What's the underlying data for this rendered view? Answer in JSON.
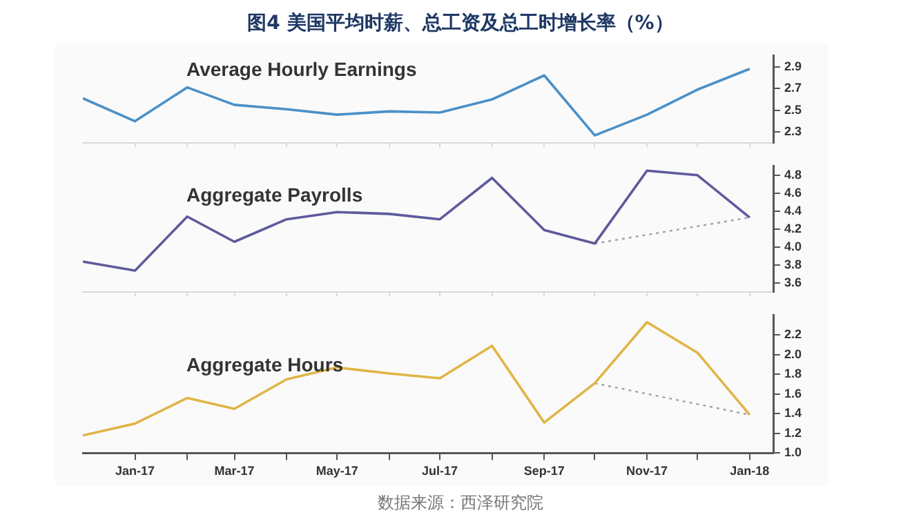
{
  "chart_data": [
    {
      "type": "line",
      "title": "图4 美国平均时薪、总工资及总工时增长率（%）",
      "x": [
        "2016-12",
        "2017-01",
        "2017-02",
        "2017-03",
        "2017-04",
        "2017-05",
        "2017-06",
        "2017-07",
        "2017-08",
        "2017-09",
        "2017-10",
        "2017-11",
        "2017-12",
        "2018-01"
      ],
      "series": [
        {
          "name": "Average Hourly Earnings",
          "color": "#4a90c8",
          "values": [
            2.61,
            2.4,
            2.71,
            2.55,
            2.51,
            2.46,
            2.49,
            2.48,
            2.6,
            2.82,
            2.27,
            2.46,
            2.69,
            2.88
          ]
        }
      ],
      "xlim": [
        "2016-12",
        "2018-01-15"
      ],
      "xticks": [
        {
          "value": "2017-01",
          "label": null
        },
        {
          "value": "2017-02",
          "label": null
        },
        {
          "value": "2017-03",
          "label": null
        },
        {
          "value": "2017-04",
          "label": null
        },
        {
          "value": "2017-05",
          "label": null
        },
        {
          "value": "2017-06",
          "label": null
        },
        {
          "value": "2017-07",
          "label": null
        },
        {
          "value": "2017-08",
          "label": null
        },
        {
          "value": "2017-09",
          "label": null
        },
        {
          "value": "2017-10",
          "label": null
        },
        {
          "value": "2017-11",
          "label": null
        },
        {
          "value": "2017-12",
          "label": null
        },
        {
          "value": "2018-01",
          "label": null
        }
      ],
      "ylim": [
        2.2,
        3.0
      ],
      "yticks": [
        2.3,
        2.5,
        2.7,
        2.9
      ],
      "tick_labels": "y",
      "marker": "none"
    },
    {
      "type": "line",
      "x": [
        "2016-12",
        "2017-01",
        "2017-02",
        "2017-03",
        "2017-04",
        "2017-05",
        "2017-06",
        "2017-07",
        "2017-08",
        "2017-09",
        "2017-10",
        "2017-11",
        "2017-12",
        "2018-01"
      ],
      "series": [
        {
          "name": "Aggregate Payrolls",
          "color": "#5e5a9c",
          "values": [
            3.84,
            3.74,
            4.34,
            4.06,
            4.31,
            4.39,
            4.37,
            4.31,
            4.77,
            4.19,
            4.04,
            4.85,
            4.8,
            4.33
          ]
        },
        {
          "x": [
            "2017-10",
            "2018-01"
          ],
          "color": "#a0a0a0",
          "line_style": "dotted",
          "values": [
            4.04,
            4.33
          ]
        }
      ],
      "xlim": [
        "2016-12",
        "2018-01-15"
      ],
      "xticks": [
        {
          "value": "2017-01",
          "label": null
        },
        {
          "value": "2017-02",
          "label": null
        },
        {
          "value": "2017-03",
          "label": null
        },
        {
          "value": "2017-04",
          "label": null
        },
        {
          "value": "2017-05",
          "label": null
        },
        {
          "value": "2017-06",
          "label": null
        },
        {
          "value": "2017-07",
          "label": null
        },
        {
          "value": "2017-08",
          "label": null
        },
        {
          "value": "2017-09",
          "label": null
        },
        {
          "value": "2017-10",
          "label": null
        },
        {
          "value": "2017-11",
          "label": null
        },
        {
          "value": "2017-12",
          "label": null
        },
        {
          "value": "2018-01",
          "label": null
        }
      ],
      "ylim": [
        3.5,
        4.9
      ],
      "yticks": [
        3.6,
        3.8,
        {
          "value": 4,
          "label": "4.0"
        },
        4.2,
        4.4,
        4.6,
        4.8
      ],
      "tick_labels": "y",
      "marker": "none"
    },
    {
      "type": "line",
      "x": [
        "2016-12",
        "2017-01",
        "2017-02",
        "2017-03",
        "2017-04",
        "2017-05",
        "2017-06",
        "2017-07",
        "2017-08",
        "2017-09",
        "2017-10",
        "2017-11",
        "2017-12",
        "2018-01"
      ],
      "series": [
        {
          "name": "Aggregate Hours",
          "color": "#e0b545",
          "values": [
            1.18,
            1.3,
            1.56,
            1.45,
            1.75,
            1.87,
            1.81,
            1.76,
            2.09,
            1.31,
            1.71,
            2.33,
            2.02,
            1.39
          ]
        },
        {
          "x": [
            "2017-10",
            "2018-01"
          ],
          "color": "#a0a0a0",
          "line_style": "dotted",
          "values": [
            1.71,
            1.39
          ]
        }
      ],
      "xlim": [
        "2016-12",
        "2018-01-15"
      ],
      "xticks": [
        {
          "value": "2017-01",
          "label": "Jan-17"
        },
        {
          "value": "2017-02",
          "label": null
        },
        {
          "value": "2017-03",
          "label": "Mar-17"
        },
        {
          "value": "2017-04",
          "label": null
        },
        {
          "value": "2017-05",
          "label": "May-17"
        },
        {
          "value": "2017-06",
          "label": null
        },
        {
          "value": "2017-07",
          "label": "Jul-17"
        },
        {
          "value": "2017-08",
          "label": null
        },
        {
          "value": "2017-09",
          "label": "Sep-17"
        },
        {
          "value": "2017-10",
          "label": null
        },
        {
          "value": "2017-11",
          "label": "Nov-17"
        },
        {
          "value": "2017-12",
          "label": null
        },
        {
          "value": "2018-01",
          "label": "Jan-18"
        }
      ],
      "ylim": [
        1.0,
        2.4
      ],
      "yticks": [
        {
          "value": 1,
          "label": "1.0"
        },
        1.2,
        1.4,
        1.6,
        1.8,
        {
          "value": 2,
          "label": "2.0"
        },
        2.2
      ],
      "marker": "none",
      "annotations": [
        "数据来源：西泽研究院"
      ]
    }
  ]
}
